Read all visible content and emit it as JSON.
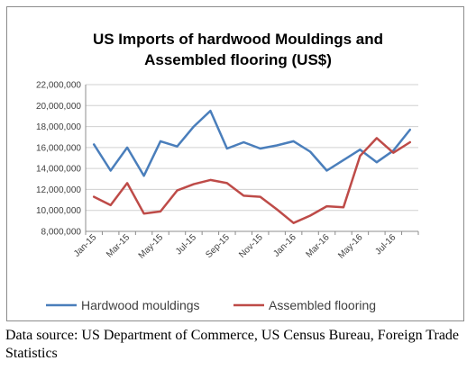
{
  "chart_data": {
    "type": "line",
    "title_lines": [
      "US Imports of hardwood Mouldings and",
      "Assembled flooring (US$)"
    ],
    "ylim": [
      8000000,
      22000000
    ],
    "y_ticks": [
      8000000,
      10000000,
      12000000,
      14000000,
      16000000,
      18000000,
      20000000,
      22000000
    ],
    "y_tick_labels": [
      "8,000,000",
      "10,000,000",
      "12,000,000",
      "14,000,000",
      "16,000,000",
      "18,000,000",
      "20,000,000",
      "22,000,000"
    ],
    "x": [
      "Jan-15",
      "Feb-15",
      "Mar-15",
      "Apr-15",
      "May-15",
      "Jun-15",
      "Jul-15",
      "Aug-15",
      "Sep-15",
      "Oct-15",
      "Nov-15",
      "Dec-15",
      "Jan-16",
      "Feb-16",
      "Mar-16",
      "Apr-16",
      "May-16",
      "Jun-16",
      "Jul-16",
      "Aug-16"
    ],
    "x_tick_labels": [
      "Jan-15",
      "Mar-15",
      "May-15",
      "Jul-15",
      "Sep-15",
      "Nov-15",
      "Jan-16",
      "Mar-16",
      "May-16",
      "Jul-16"
    ],
    "grid": "horizontal",
    "legend_position": "bottom",
    "series": [
      {
        "name": "Hardwood mouldings",
        "color": "#4a7ebb",
        "values": [
          16300000,
          13800000,
          16000000,
          13300000,
          16600000,
          16100000,
          18000000,
          19500000,
          15900000,
          16500000,
          15900000,
          16200000,
          16600000,
          15600000,
          13800000,
          14800000,
          15800000,
          14600000,
          15700000,
          17700000
        ]
      },
      {
        "name": "Assembled flooring",
        "color": "#be4b48",
        "values": [
          11300000,
          10500000,
          12600000,
          9700000,
          9900000,
          11900000,
          12500000,
          12900000,
          12600000,
          11400000,
          11300000,
          10100000,
          8800000,
          9500000,
          10400000,
          10300000,
          15200000,
          16900000,
          15500000,
          16500000
        ]
      }
    ]
  },
  "source_note": "Data source: US Department of Commerce, US Census Bureau, Foreign Trade Statistics"
}
